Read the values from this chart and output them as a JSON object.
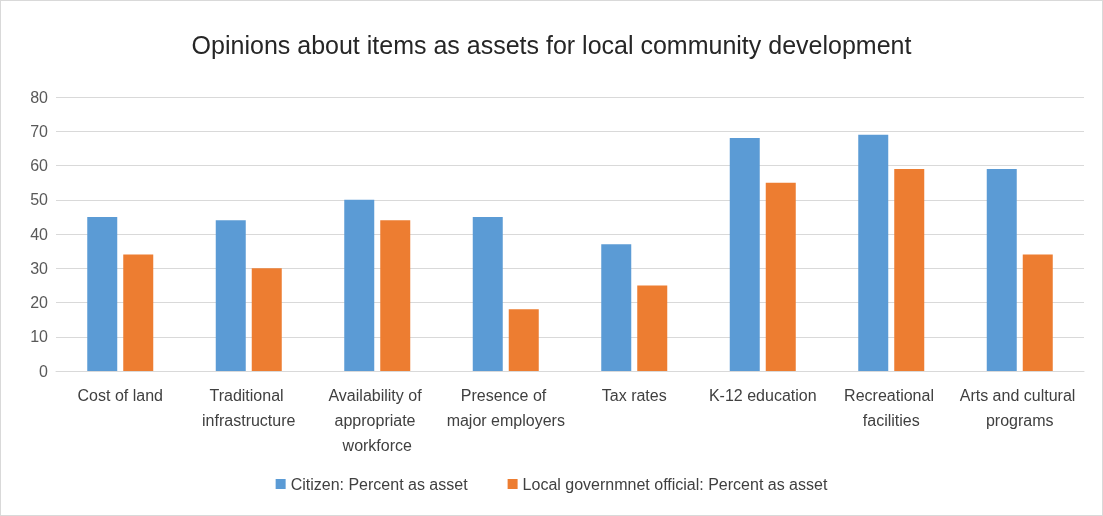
{
  "chart_data": {
    "type": "bar",
    "title": "Opinions about items as assets for local community development",
    "categories": [
      "Cost of land",
      "Traditional infrastructure",
      "Availability of appropriate workforce",
      "Presence of major employers",
      "Tax rates",
      "K-12 education",
      "Recreational facilities",
      "Arts and cultural programs"
    ],
    "series": [
      {
        "name": "Citizen: Percent as asset",
        "color": "#5b9bd5",
        "values": [
          45,
          44,
          50,
          45,
          37,
          68,
          69,
          59
        ]
      },
      {
        "name": "Local governmnet official: Percent as asset",
        "color": "#ed7d31",
        "values": [
          34,
          30,
          44,
          18,
          25,
          55,
          59,
          34
        ]
      }
    ],
    "ylim": [
      0,
      80
    ],
    "yticks": [
      0,
      10,
      20,
      30,
      40,
      50,
      60,
      70,
      80
    ],
    "grid": "y",
    "legend": "bottom"
  }
}
